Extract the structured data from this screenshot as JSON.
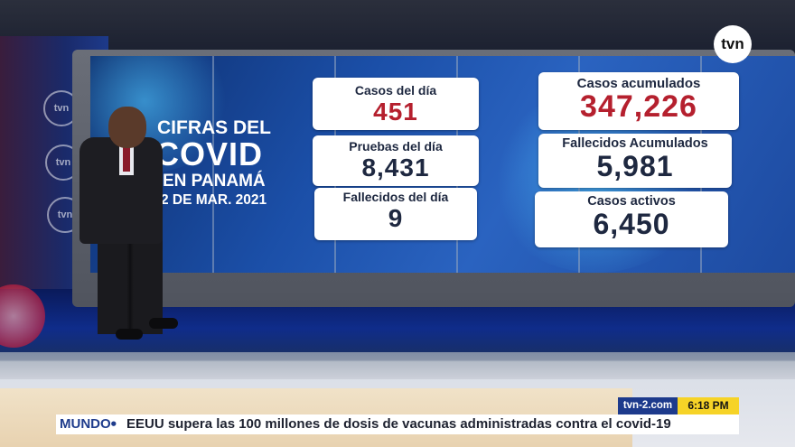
{
  "channel": {
    "logo": "tvn",
    "site": "tvn-2.com",
    "time": "6:18 PM"
  },
  "wall_logo_text": "tvn",
  "graphic": {
    "title_lines": [
      "CIFRAS DEL",
      "COVID",
      "EN PANAMÁ",
      "2 DE MAR. 2021"
    ],
    "cards_left": [
      {
        "label": "Casos del día",
        "value": "451"
      },
      {
        "label": "Pruebas del día",
        "value": "8,431"
      },
      {
        "label": "Fallecidos del día",
        "value": "9"
      }
    ],
    "cards_right": [
      {
        "label": "Casos acumulados",
        "value": "347,226"
      },
      {
        "label": "Fallecidos Acumulados",
        "value": "5,981"
      },
      {
        "label": "Casos activos",
        "value": "6,450"
      }
    ],
    "colors": {
      "highlight_value": "#b5202e",
      "card_text": "#1e2840"
    }
  },
  "ticker": {
    "category": "MUNDO",
    "separator": "•",
    "headline": "EEUU supera las 100 millones de dosis de vacunas administradas contra el covid-19"
  }
}
